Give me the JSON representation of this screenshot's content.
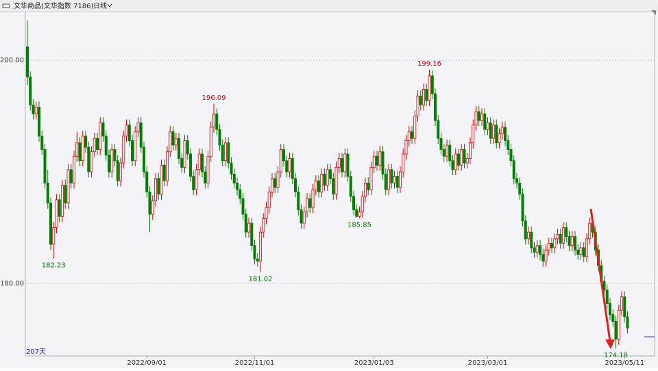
{
  "chart_data": {
    "type": "candlestick",
    "title": "文华商品(文华指数 7186)",
    "period": "日线",
    "count_label": "207天",
    "up_color": "#e00000",
    "down_color": "#008000",
    "grid": true,
    "ylim": [
      173.5,
      204.3
    ],
    "yticks": [
      {
        "value": 180,
        "label": "180.00"
      },
      {
        "value": 200,
        "label": "200.00"
      }
    ],
    "categories": [
      null,
      null,
      null,
      null,
      null,
      null,
      null,
      null,
      null,
      null,
      null,
      null,
      null,
      null,
      null,
      null,
      null,
      null,
      null,
      null,
      null,
      null,
      null,
      null,
      null,
      null,
      null,
      null,
      null,
      null,
      null,
      null,
      null,
      null,
      null,
      null,
      null,
      null,
      null,
      null,
      null,
      "2022/09/01",
      null,
      null,
      null,
      null,
      null,
      null,
      null,
      null,
      null,
      null,
      null,
      null,
      null,
      null,
      null,
      null,
      null,
      null,
      null,
      null,
      null,
      null,
      null,
      null,
      null,
      null,
      null,
      null,
      null,
      null,
      null,
      null,
      null,
      null,
      null,
      null,
      "2022/11/01",
      null,
      null,
      null,
      null,
      null,
      null,
      null,
      null,
      null,
      null,
      null,
      null,
      null,
      null,
      null,
      null,
      null,
      null,
      null,
      null,
      null,
      null,
      null,
      null,
      null,
      null,
      null,
      null,
      null,
      null,
      null,
      null,
      null,
      null,
      null,
      null,
      null,
      null,
      null,
      null,
      "2023/01/03",
      null,
      null,
      null,
      null,
      null,
      null,
      null,
      null,
      null,
      null,
      null,
      null,
      null,
      null,
      null,
      null,
      null,
      null,
      null,
      null,
      null,
      null,
      null,
      null,
      null,
      null,
      null,
      null,
      null,
      null,
      null,
      null,
      null,
      null,
      null,
      null,
      null,
      null,
      "2023/03/01",
      null,
      null,
      null,
      null,
      null,
      null,
      null,
      null,
      null,
      null,
      null,
      null,
      null,
      null,
      null,
      null,
      null,
      null,
      null,
      null,
      null,
      null,
      null,
      null,
      null,
      null,
      null,
      null,
      null,
      null,
      null,
      null,
      null,
      null,
      null,
      null,
      null,
      null,
      null,
      null,
      null,
      null,
      null,
      null,
      null,
      null,
      "2023/05/11",
      null
    ],
    "high_labels": [
      64,
      138
    ],
    "low_labels": [
      9,
      80,
      114,
      202
    ],
    "ohlc": [
      [
        201.2,
        203.6,
        197.8,
        198.5
      ],
      [
        198.5,
        199.0,
        195.5,
        196.0
      ],
      [
        196.0,
        196.5,
        194.7,
        195.2
      ],
      [
        195.2,
        196.3,
        194.7,
        195.8
      ],
      [
        195.8,
        196.3,
        192.7,
        193.2
      ],
      [
        193.2,
        193.7,
        191.5,
        192.0
      ],
      [
        192.0,
        192.5,
        188.5,
        189.0
      ],
      [
        189.0,
        190.2,
        186.7,
        187.2
      ],
      [
        187.2,
        187.7,
        183.0,
        183.5
      ],
      [
        183.5,
        185.5,
        182.23,
        185.0
      ],
      [
        185.0,
        188.0,
        184.5,
        187.5
      ],
      [
        187.5,
        188.0,
        185.5,
        186.0
      ],
      [
        186.0,
        189.3,
        185.5,
        188.8
      ],
      [
        188.8,
        189.3,
        186.7,
        187.2
      ],
      [
        187.2,
        190.7,
        186.7,
        190.2
      ],
      [
        190.2,
        190.7,
        188.5,
        189.0
      ],
      [
        189.0,
        191.9,
        188.5,
        191.4
      ],
      [
        191.4,
        193.6,
        190.9,
        192.6
      ],
      [
        192.6,
        193.1,
        190.5,
        191.0
      ],
      [
        191.0,
        193.7,
        190.5,
        193.2
      ],
      [
        193.2,
        193.7,
        191.7,
        192.2
      ],
      [
        192.2,
        192.7,
        189.5,
        190.0
      ],
      [
        190.0,
        192.3,
        189.5,
        191.8
      ],
      [
        191.8,
        193.5,
        191.3,
        193.0
      ],
      [
        193.0,
        193.5,
        191.5,
        192.0
      ],
      [
        192.0,
        194.9,
        191.5,
        194.4
      ],
      [
        194.4,
        194.9,
        192.7,
        193.2
      ],
      [
        193.2,
        193.7,
        191.0,
        191.5
      ],
      [
        191.5,
        192.0,
        189.5,
        190.0
      ],
      [
        190.0,
        192.5,
        189.5,
        192.0
      ],
      [
        192.0,
        192.5,
        190.5,
        191.0
      ],
      [
        191.0,
        191.5,
        188.7,
        189.2
      ],
      [
        189.2,
        191.3,
        188.7,
        190.8
      ],
      [
        190.8,
        193.7,
        190.3,
        193.2
      ],
      [
        193.2,
        194.7,
        192.7,
        194.2
      ],
      [
        194.2,
        194.7,
        192.3,
        192.8
      ],
      [
        192.8,
        193.3,
        190.5,
        191.0
      ],
      [
        191.0,
        194.1,
        190.5,
        193.6
      ],
      [
        193.6,
        194.9,
        193.1,
        194.4
      ],
      [
        194.4,
        194.9,
        191.7,
        192.2
      ],
      [
        192.2,
        192.7,
        189.5,
        190.0
      ],
      [
        190.0,
        190.5,
        187.7,
        188.2
      ],
      [
        188.2,
        188.7,
        184.6,
        186.2
      ],
      [
        186.2,
        187.9,
        185.7,
        187.4
      ],
      [
        187.4,
        189.9,
        186.9,
        189.4
      ],
      [
        189.4,
        189.9,
        187.5,
        188.0
      ],
      [
        188.0,
        191.1,
        187.5,
        190.6
      ],
      [
        190.6,
        191.1,
        188.7,
        189.2
      ],
      [
        189.2,
        192.3,
        188.7,
        191.8
      ],
      [
        191.8,
        194.1,
        191.3,
        193.6
      ],
      [
        193.6,
        194.1,
        191.9,
        192.4
      ],
      [
        192.4,
        193.5,
        191.9,
        193.0
      ],
      [
        193.0,
        193.5,
        190.7,
        191.2
      ],
      [
        191.2,
        191.7,
        189.9,
        190.4
      ],
      [
        190.4,
        193.3,
        189.9,
        192.8
      ],
      [
        192.8,
        193.3,
        191.1,
        191.6
      ],
      [
        191.6,
        192.1,
        189.1,
        189.6
      ],
      [
        189.6,
        190.1,
        187.9,
        188.4
      ],
      [
        188.4,
        190.7,
        187.9,
        190.2
      ],
      [
        190.2,
        192.1,
        189.7,
        191.6
      ],
      [
        191.6,
        192.1,
        189.5,
        190.0
      ],
      [
        190.0,
        190.5,
        188.5,
        189.0
      ],
      [
        189.0,
        191.9,
        188.5,
        191.4
      ],
      [
        191.4,
        194.5,
        190.9,
        194.0
      ],
      [
        194.0,
        196.09,
        193.5,
        195.2
      ],
      [
        195.2,
        195.7,
        193.3,
        193.8
      ],
      [
        193.8,
        194.3,
        191.9,
        192.4
      ],
      [
        192.4,
        192.9,
        190.5,
        191.0
      ],
      [
        191.0,
        193.1,
        190.5,
        192.6
      ],
      [
        192.6,
        193.1,
        190.3,
        190.8
      ],
      [
        190.8,
        191.3,
        189.3,
        189.8
      ],
      [
        189.8,
        190.3,
        188.5,
        189.0
      ],
      [
        189.0,
        189.5,
        187.9,
        188.4
      ],
      [
        188.4,
        188.9,
        187.1,
        187.6
      ],
      [
        187.6,
        188.1,
        185.7,
        186.2
      ],
      [
        186.2,
        186.7,
        184.1,
        184.6
      ],
      [
        184.6,
        185.9,
        184.1,
        185.4
      ],
      [
        185.4,
        185.9,
        182.9,
        183.4
      ],
      [
        183.4,
        183.9,
        181.7,
        182.2
      ],
      [
        182.2,
        182.7,
        181.5,
        182.0
      ],
      [
        182.0,
        185.1,
        181.02,
        184.6
      ],
      [
        184.6,
        186.3,
        184.1,
        185.8
      ],
      [
        185.8,
        187.3,
        185.3,
        186.8
      ],
      [
        186.8,
        188.7,
        186.3,
        188.2
      ],
      [
        188.2,
        189.9,
        187.7,
        189.4
      ],
      [
        189.4,
        189.9,
        188.1,
        188.6
      ],
      [
        188.6,
        190.5,
        188.1,
        190.0
      ],
      [
        190.0,
        192.5,
        189.5,
        192.0
      ],
      [
        192.0,
        192.5,
        190.5,
        191.0
      ],
      [
        191.0,
        191.5,
        189.5,
        190.0
      ],
      [
        190.0,
        191.7,
        189.5,
        191.2
      ],
      [
        191.2,
        191.7,
        188.9,
        189.4
      ],
      [
        189.4,
        189.9,
        187.7,
        188.2
      ],
      [
        188.2,
        188.7,
        186.1,
        186.6
      ],
      [
        186.6,
        187.1,
        184.9,
        185.4
      ],
      [
        185.4,
        186.9,
        184.9,
        186.4
      ],
      [
        186.4,
        188.1,
        185.9,
        187.6
      ],
      [
        187.6,
        188.1,
        186.3,
        186.8
      ],
      [
        186.8,
        188.9,
        186.3,
        188.4
      ],
      [
        188.4,
        189.7,
        187.9,
        189.2
      ],
      [
        189.2,
        189.7,
        187.7,
        188.2
      ],
      [
        188.2,
        190.3,
        187.7,
        189.8
      ],
      [
        189.8,
        190.3,
        188.3,
        188.8
      ],
      [
        188.8,
        190.7,
        188.3,
        190.2
      ],
      [
        190.2,
        190.7,
        188.9,
        189.4
      ],
      [
        189.4,
        189.9,
        187.5,
        188.0
      ],
      [
        188.0,
        190.9,
        187.5,
        190.4
      ],
      [
        190.4,
        191.7,
        189.9,
        191.2
      ],
      [
        191.2,
        191.7,
        189.5,
        190.0
      ],
      [
        190.0,
        192.1,
        189.5,
        191.6
      ],
      [
        191.6,
        192.1,
        189.1,
        189.6
      ],
      [
        189.6,
        190.1,
        187.3,
        187.8
      ],
      [
        187.8,
        188.3,
        186.1,
        186.6
      ],
      [
        186.6,
        187.1,
        185.9,
        186.0
      ],
      [
        186.0,
        186.9,
        185.85,
        186.4
      ],
      [
        186.4,
        188.3,
        185.9,
        187.8
      ],
      [
        187.8,
        189.5,
        187.3,
        189.0
      ],
      [
        189.0,
        189.5,
        187.9,
        188.4
      ],
      [
        188.4,
        190.9,
        187.9,
        190.4
      ],
      [
        190.4,
        191.9,
        189.9,
        191.4
      ],
      [
        191.4,
        191.9,
        190.1,
        190.6
      ],
      [
        190.6,
        192.3,
        190.1,
        191.8
      ],
      [
        191.8,
        192.3,
        189.3,
        189.8
      ],
      [
        189.8,
        190.3,
        187.9,
        188.4
      ],
      [
        188.4,
        190.7,
        187.9,
        190.2
      ],
      [
        190.2,
        190.7,
        188.5,
        189.0
      ],
      [
        189.0,
        190.1,
        188.5,
        189.6
      ],
      [
        189.6,
        190.1,
        188.1,
        188.6
      ],
      [
        188.6,
        190.5,
        188.1,
        190.0
      ],
      [
        190.0,
        192.1,
        189.5,
        191.6
      ],
      [
        191.6,
        193.3,
        191.1,
        192.8
      ],
      [
        192.8,
        194.1,
        192.3,
        193.6
      ],
      [
        193.6,
        194.1,
        192.5,
        193.0
      ],
      [
        193.0,
        195.5,
        192.5,
        195.0
      ],
      [
        195.0,
        197.3,
        194.5,
        196.8
      ],
      [
        196.8,
        197.3,
        195.5,
        196.0
      ],
      [
        196.0,
        197.9,
        195.5,
        197.4
      ],
      [
        197.4,
        197.9,
        195.9,
        196.4
      ],
      [
        196.4,
        199.16,
        195.9,
        198.6
      ],
      [
        198.6,
        199.1,
        196.5,
        197.0
      ],
      [
        197.0,
        197.5,
        194.1,
        194.6
      ],
      [
        194.6,
        195.1,
        192.5,
        193.0
      ],
      [
        193.0,
        193.5,
        191.5,
        192.0
      ],
      [
        192.0,
        192.5,
        190.9,
        191.4
      ],
      [
        191.4,
        192.9,
        190.9,
        192.4
      ],
      [
        192.4,
        192.9,
        190.5,
        191.0
      ],
      [
        191.0,
        191.5,
        189.7,
        190.2
      ],
      [
        190.2,
        192.1,
        189.7,
        191.6
      ],
      [
        191.6,
        192.1,
        190.1,
        190.6
      ],
      [
        190.6,
        192.5,
        190.1,
        192.0
      ],
      [
        192.0,
        192.5,
        190.3,
        190.8
      ],
      [
        190.8,
        191.7,
        190.3,
        191.2
      ],
      [
        191.2,
        193.1,
        190.7,
        192.6
      ],
      [
        192.6,
        194.7,
        192.1,
        194.2
      ],
      [
        194.2,
        195.9,
        193.7,
        195.4
      ],
      [
        195.4,
        195.9,
        194.1,
        194.6
      ],
      [
        194.6,
        195.7,
        194.1,
        195.2
      ],
      [
        195.2,
        195.7,
        193.3,
        193.8
      ],
      [
        193.8,
        194.9,
        193.3,
        194.4
      ],
      [
        194.4,
        194.9,
        192.5,
        193.0
      ],
      [
        193.0,
        194.7,
        192.5,
        194.2
      ],
      [
        194.2,
        194.7,
        192.1,
        192.6
      ],
      [
        192.6,
        193.9,
        192.1,
        193.4
      ],
      [
        193.4,
        194.5,
        192.9,
        194.0
      ],
      [
        194.0,
        194.5,
        192.3,
        192.8
      ],
      [
        192.8,
        193.3,
        191.5,
        192.0
      ],
      [
        192.0,
        192.5,
        190.5,
        191.0
      ],
      [
        191.0,
        191.5,
        188.9,
        189.4
      ],
      [
        189.4,
        189.9,
        188.5,
        189.0
      ],
      [
        189.0,
        189.5,
        187.5,
        188.0
      ],
      [
        188.0,
        188.5,
        185.1,
        185.6
      ],
      [
        185.6,
        186.1,
        183.5,
        184.0
      ],
      [
        184.0,
        185.1,
        183.5,
        184.6
      ],
      [
        184.6,
        185.1,
        182.7,
        183.2
      ],
      [
        183.2,
        183.7,
        182.3,
        182.8
      ],
      [
        182.8,
        183.9,
        182.3,
        183.4
      ],
      [
        183.4,
        183.9,
        182.1,
        182.6
      ],
      [
        182.6,
        183.1,
        181.5,
        182.0
      ],
      [
        182.0,
        183.5,
        181.5,
        183.0
      ],
      [
        183.0,
        184.1,
        182.5,
        183.6
      ],
      [
        183.6,
        184.1,
        182.7,
        183.2
      ],
      [
        183.2,
        184.5,
        182.7,
        184.0
      ],
      [
        184.0,
        184.9,
        183.5,
        184.4
      ],
      [
        184.4,
        184.9,
        183.1,
        183.6
      ],
      [
        183.6,
        185.5,
        183.1,
        185.0
      ],
      [
        185.0,
        185.5,
        183.7,
        184.2
      ],
      [
        184.2,
        184.7,
        182.9,
        183.4
      ],
      [
        183.4,
        184.7,
        182.9,
        184.2
      ],
      [
        184.2,
        184.7,
        182.5,
        183.0
      ],
      [
        183.0,
        183.5,
        182.1,
        182.6
      ],
      [
        182.6,
        183.7,
        182.1,
        183.2
      ],
      [
        183.2,
        183.7,
        181.9,
        182.4
      ],
      [
        182.4,
        184.5,
        181.9,
        184.0
      ],
      [
        184.0,
        185.9,
        183.5,
        185.4
      ],
      [
        185.4,
        185.9,
        184.1,
        184.6
      ],
      [
        184.6,
        185.1,
        182.5,
        183.0
      ],
      [
        183.0,
        183.5,
        181.1,
        181.6
      ],
      [
        181.6,
        182.1,
        179.7,
        180.2
      ],
      [
        180.2,
        180.7,
        178.9,
        179.4
      ],
      [
        179.4,
        179.9,
        177.7,
        178.2
      ],
      [
        178.2,
        178.7,
        176.7,
        177.2
      ],
      [
        177.2,
        177.7,
        176.1,
        176.6
      ],
      [
        176.6,
        177.1,
        174.18,
        175.0
      ],
      [
        175.0,
        178.1,
        174.5,
        177.6
      ],
      [
        177.6,
        179.3,
        177.1,
        178.8
      ],
      [
        178.8,
        179.3,
        176.5,
        177.0
      ],
      [
        177.0,
        177.5,
        175.5,
        176.0
      ]
    ]
  }
}
